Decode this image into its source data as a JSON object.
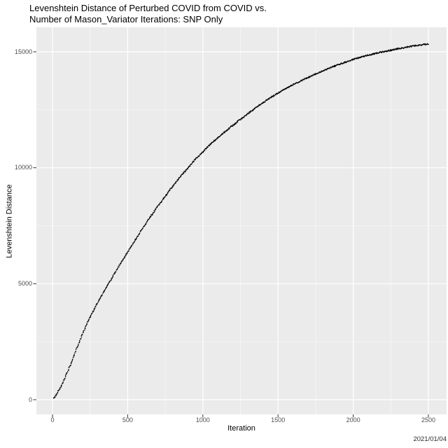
{
  "chart_data": {
    "type": "scatter",
    "title_lines": [
      "Levenshtein Distance of Perturbed COVID from COVID vs.",
      "Number of Mason_Variator Iterations: SNP Only"
    ],
    "xlabel": "Iteration",
    "ylabel": "Levenshtein Distance",
    "caption": "2021/01/04",
    "x_ticks": [
      0,
      500,
      1000,
      1500,
      2000,
      2500
    ],
    "x_tick_labels": [
      "0",
      "500",
      "1000",
      "1500",
      "2000",
      "2500"
    ],
    "x_minor_ticks": [
      250,
      750,
      1250,
      1750,
      2250
    ],
    "y_ticks": [
      0,
      5000,
      10000,
      15000
    ],
    "y_tick_labels": [
      "0",
      "5000",
      "10000",
      "15000"
    ],
    "y_minor_ticks": [
      2500,
      7500,
      12500
    ],
    "xlim": [
      -125,
      2625
    ],
    "ylim": [
      -770,
      16100
    ],
    "grid": true,
    "legend": "none",
    "panel_color": "#EBEBEB",
    "grid_major_color": "#FFFFFF",
    "grid_minor_color": "#FFFFFF",
    "point_color": "#000000",
    "tick_label_color": "#4d4d4d",
    "series": [
      {
        "name": "levenshtein-distance-vs-iteration",
        "style": "dense small black points forming a saturating curve",
        "points": [
          [
            0,
            0
          ],
          [
            250,
            3560
          ],
          [
            500,
            6370
          ],
          [
            750,
            8780
          ],
          [
            1000,
            10690
          ],
          [
            1250,
            12090
          ],
          [
            1500,
            13220
          ],
          [
            1750,
            14040
          ],
          [
            2000,
            14670
          ],
          [
            2250,
            15070
          ],
          [
            2500,
            15330
          ]
        ]
      }
    ]
  }
}
